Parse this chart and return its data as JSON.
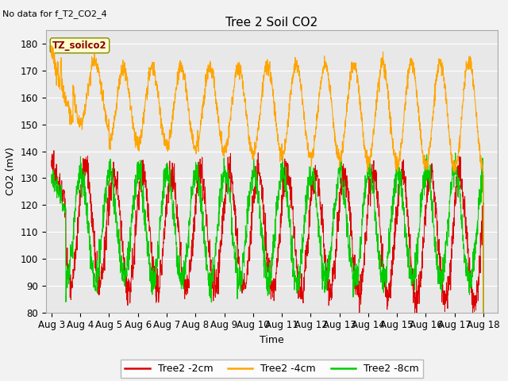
{
  "title": "Tree 2 Soil CO2",
  "no_data_text": "No data for f_T2_CO2_4",
  "ylabel": "CO2 (mV)",
  "xlabel": "Time",
  "annotation_label": "TZ_soilco2",
  "ylim": [
    80,
    185
  ],
  "yticks": [
    80,
    90,
    100,
    110,
    120,
    130,
    140,
    150,
    160,
    170,
    180
  ],
  "xtick_labels": [
    "Aug 3",
    "Aug 4",
    "Aug 5",
    "Aug 6",
    "Aug 7",
    "Aug 8",
    "Aug 9",
    "Aug 10",
    "Aug 11",
    "Aug 12",
    "Aug 13",
    "Aug 14",
    "Aug 15",
    "Aug 16",
    "Aug 17",
    "Aug 18"
  ],
  "color_2cm": "#dd0000",
  "color_4cm": "#ffa500",
  "color_8cm": "#00cc00",
  "bg_color": "#e8e8e8",
  "plot_bg": "#e8e8e8",
  "fig_bg": "#f2f2f2",
  "legend_labels": [
    "Tree2 -2cm",
    "Tree2 -4cm",
    "Tree2 -8cm"
  ],
  "title_fontsize": 11,
  "axis_fontsize": 9,
  "tick_fontsize": 8.5
}
